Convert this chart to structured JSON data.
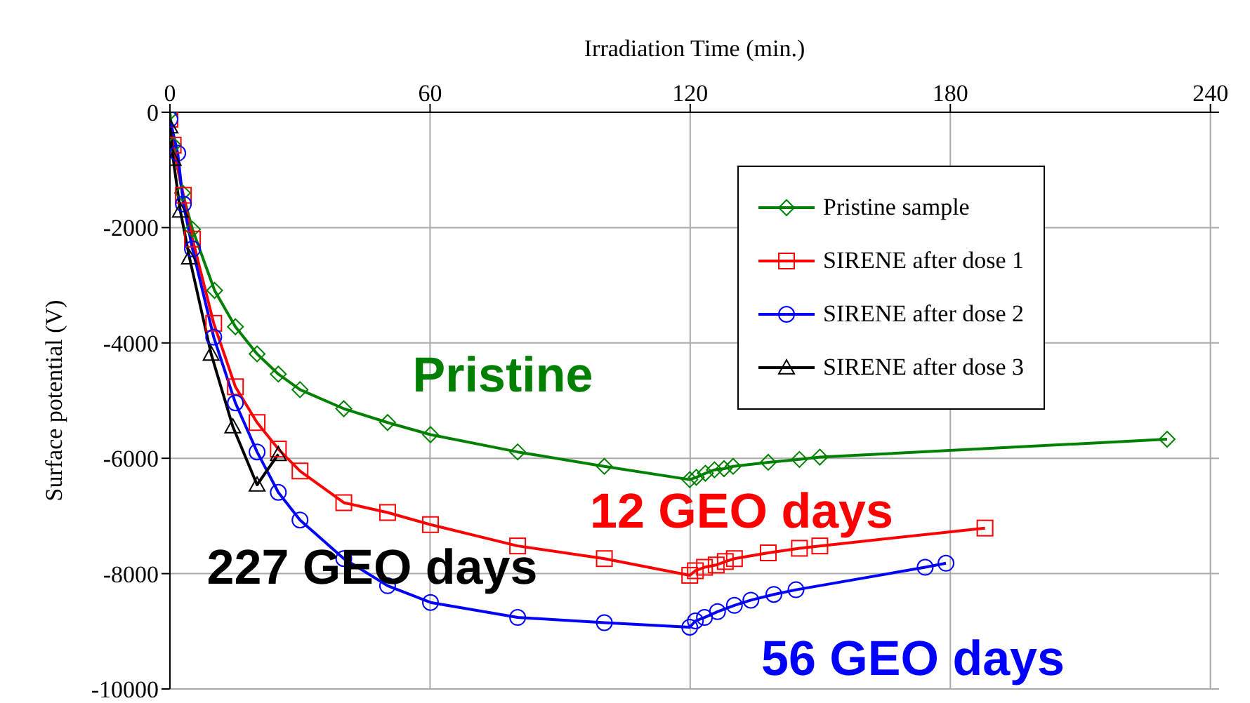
{
  "chart_data": {
    "type": "line",
    "xlabel": "Irradiation Time (min.)",
    "ylabel": "Surface potential (V)",
    "xlim": [
      0,
      242
    ],
    "xticks": [
      0,
      60,
      120,
      180,
      240
    ],
    "ylim": [
      -10000,
      0
    ],
    "yticks": [
      -10000,
      -8000,
      -6000,
      -4000,
      -2000,
      0
    ],
    "grid": true,
    "legend": "top right",
    "line_style": "solid",
    "series": [
      {
        "name": "Pristine sample",
        "color": "#008000",
        "marker": "diamond",
        "x": [
          0,
          0.75,
          2.9,
          5.2,
          10.3,
          15.1,
          20.1,
          25,
          30,
          40.1,
          50.2,
          60.1,
          80.2,
          100.2,
          119.9,
          121.4,
          123.5,
          125.6,
          127.8,
          129.9,
          138,
          145.2,
          149.9,
          230
        ],
        "values": [
          0,
          -570,
          -1400,
          -2030,
          -3090,
          -3720,
          -4190,
          -4540,
          -4810,
          -5140,
          -5380,
          -5590,
          -5890,
          -6140,
          -6370,
          -6330,
          -6260,
          -6200,
          -6180,
          -6140,
          -6070,
          -6020,
          -5980,
          -5670
        ]
      },
      {
        "name": "SIRENE after dose 1",
        "color": "#ff0000",
        "marker": "square",
        "x": [
          0,
          0.75,
          3.1,
          5.2,
          10.1,
          15.1,
          20.1,
          25,
          30,
          40.1,
          50.2,
          60.1,
          80.2,
          100.2,
          119.9,
          121.2,
          123.3,
          126,
          128.1,
          130.2,
          138,
          145.2,
          149.9,
          188
        ],
        "values": [
          -120,
          -570,
          -1440,
          -2200,
          -3660,
          -4760,
          -5380,
          -5840,
          -6220,
          -6770,
          -6940,
          -7150,
          -7520,
          -7740,
          -8030,
          -7950,
          -7890,
          -7850,
          -7790,
          -7740,
          -7640,
          -7560,
          -7520,
          -7210
        ]
      },
      {
        "name": "SIRENE after dose 2",
        "color": "#0000ff",
        "marker": "circle",
        "x": [
          0,
          1.8,
          3.1,
          5.2,
          10.1,
          15.1,
          20.1,
          25,
          30,
          40.1,
          50.2,
          60.1,
          80.2,
          100.2,
          119.9,
          121.2,
          123.3,
          126.3,
          130.2,
          134,
          139.3,
          144.4,
          174.2,
          179
        ],
        "values": [
          -120,
          -710,
          -1590,
          -2370,
          -3900,
          -5040,
          -5890,
          -6590,
          -7070,
          -7740,
          -8210,
          -8500,
          -8760,
          -8850,
          -8930,
          -8820,
          -8760,
          -8660,
          -8550,
          -8460,
          -8360,
          -8280,
          -7890,
          -7820
        ]
      },
      {
        "name": "SIRENE after dose 3",
        "color": "#000000",
        "marker": "triangle",
        "x": [
          0,
          0.75,
          2.4,
          4.5,
          9.5,
          14.5,
          20.1,
          25
        ],
        "values": [
          -250,
          -810,
          -1710,
          -2520,
          -4190,
          -5450,
          -6460,
          -5930
        ]
      }
    ],
    "annotations": [
      "Pristine",
      "12 GEO days",
      "56 GEO days",
      "227 GEO days"
    ]
  }
}
